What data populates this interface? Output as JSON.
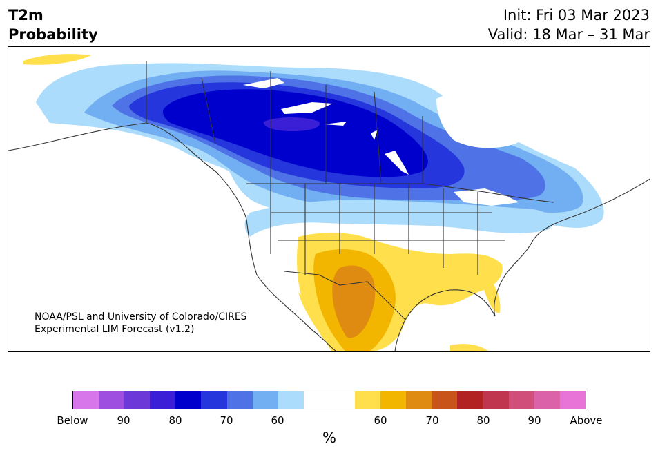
{
  "title": {
    "line1": "T2m",
    "line2": "Probability",
    "init": "Init: Fri 03 Mar 2023",
    "valid": "Valid: 18 Mar – 31 Mar"
  },
  "credit": {
    "line1": "NOAA/PSL and University of Colorado/CIRES",
    "line2": "Experimental LIM Forecast (v1.2)"
  },
  "colorbar": {
    "colors": [
      "#d676ea",
      "#9e4fe0",
      "#6c38d8",
      "#3a1fd6",
      "#0000cd",
      "#2536dc",
      "#4f73e6",
      "#72aef2",
      "#acdcfc",
      "#ffffff",
      "#ffffff",
      "#ffe04c",
      "#f2b600",
      "#df8a10",
      "#c9541a",
      "#b22222",
      "#c0364e",
      "#d04e7a",
      "#db62a8",
      "#e874d8"
    ],
    "ticks": [
      "Below",
      "90",
      "80",
      "70",
      "60",
      "60",
      "70",
      "80",
      "90",
      "Above"
    ],
    "unit": "%"
  },
  "map_colors": {
    "below_90": "#3a1fd6",
    "below_80": "#0000cd",
    "below_70": "#2536dc",
    "below_60": "#4f73e6",
    "below_55": "#72aef2",
    "below_50": "#acdcfc",
    "above_55": "#ffe04c",
    "above_60": "#f2b600",
    "above_65": "#df8a10",
    "land_white": "#ffffff",
    "lake": "#ffffff"
  }
}
